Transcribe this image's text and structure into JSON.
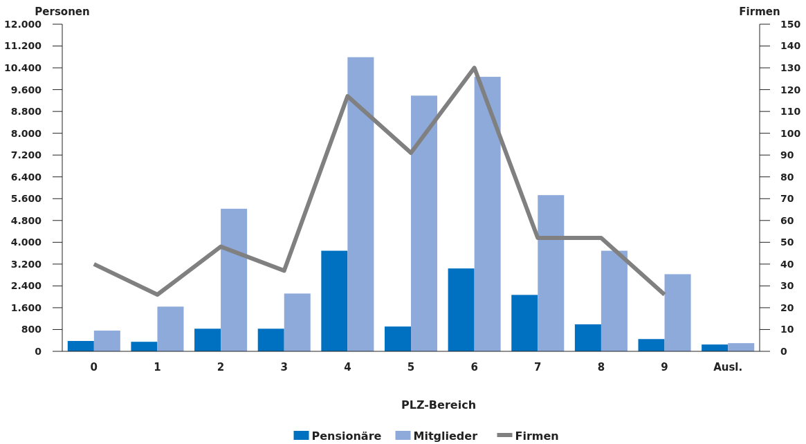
{
  "chart_data": {
    "type": "bar",
    "xlabel": "PLZ-Bereich",
    "ylabel": "Personen",
    "y2label": "Firmen",
    "categories": [
      "0",
      "1",
      "2",
      "3",
      "4",
      "5",
      "6",
      "7",
      "8",
      "9",
      "Ausl."
    ],
    "series": [
      {
        "name": "Pensionäre",
        "color": "#0070c0",
        "values": [
          380,
          350,
          830,
          830,
          3690,
          910,
          3040,
          2070,
          990,
          450,
          250
        ]
      },
      {
        "name": "Mitglieder",
        "color": "#8eaadb",
        "values": [
          760,
          1640,
          5230,
          2120,
          10790,
          9380,
          10070,
          5730,
          3690,
          2830,
          300
        ]
      },
      {
        "name": "Firmen",
        "type": "line",
        "axis": "y2",
        "color": "#808080",
        "values": [
          40,
          26,
          48,
          37,
          117,
          91,
          130,
          52,
          52,
          26,
          null
        ]
      }
    ],
    "ylim": [
      0,
      12000
    ],
    "yticks": [
      0,
      800,
      {
        "value": 1600,
        "label": "1.600"
      },
      {
        "value": 2400,
        "label": "2.400"
      },
      {
        "value": 3200,
        "label": "3.200"
      },
      {
        "value": 4000,
        "label": "4.000"
      },
      {
        "value": 4800,
        "label": "4.800"
      },
      {
        "value": 5600,
        "label": "5.600"
      },
      {
        "value": 6400,
        "label": "6.400"
      },
      {
        "value": 7200,
        "label": "7.200"
      },
      {
        "value": 8000,
        "label": "8.000"
      },
      {
        "value": 8800,
        "label": "8.800"
      },
      {
        "value": 9600,
        "label": "9.600"
      },
      {
        "value": 10400,
        "label": "10.400"
      },
      {
        "value": 11200,
        "label": "11.200"
      },
      {
        "value": 12000,
        "label": "12.000"
      }
    ],
    "y2lim": [
      0,
      150
    ],
    "y2ticks": [
      0,
      10,
      20,
      30,
      40,
      50,
      60,
      70,
      80,
      90,
      100,
      110,
      120,
      130,
      140,
      150
    ],
    "legend": "bottom",
    "grid": false
  }
}
